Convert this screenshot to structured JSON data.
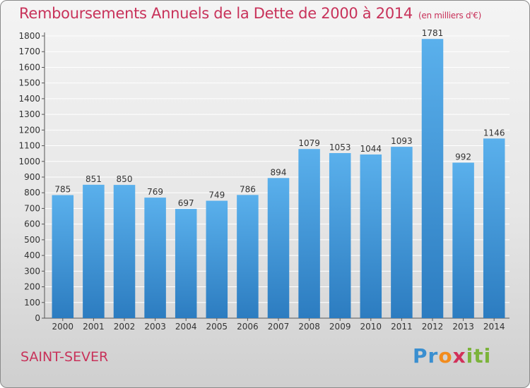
{
  "header": {
    "title": "Remboursements Annuels de la Dette de 2000 à 2014",
    "unit": "(en milliers d'€)"
  },
  "footer": {
    "city": "SAINT-SEVER",
    "logo": "Proxiti"
  },
  "colors": {
    "bar": "#4fa6e6",
    "bar_dark": "#2f7fc4",
    "title": "#c8325a",
    "grid": "#ffffff"
  },
  "chart_data": {
    "type": "bar",
    "title": "Remboursements Annuels de la Dette de 2000 à 2014",
    "subtitle": "(en milliers d'€)",
    "categories": [
      "2000",
      "2001",
      "2002",
      "2003",
      "2004",
      "2005",
      "2006",
      "2007",
      "2008",
      "2009",
      "2010",
      "2011",
      "2012",
      "2013",
      "2014"
    ],
    "values": [
      785,
      851,
      850,
      769,
      697,
      749,
      786,
      894,
      1079,
      1053,
      1044,
      1093,
      1781,
      992,
      1146
    ],
    "ylim": [
      0,
      1800
    ],
    "yticks": [
      0,
      100,
      200,
      300,
      400,
      500,
      600,
      700,
      800,
      900,
      1000,
      1100,
      1200,
      1300,
      1400,
      1500,
      1600,
      1700,
      1800
    ],
    "grid": true,
    "data_labels": true
  }
}
